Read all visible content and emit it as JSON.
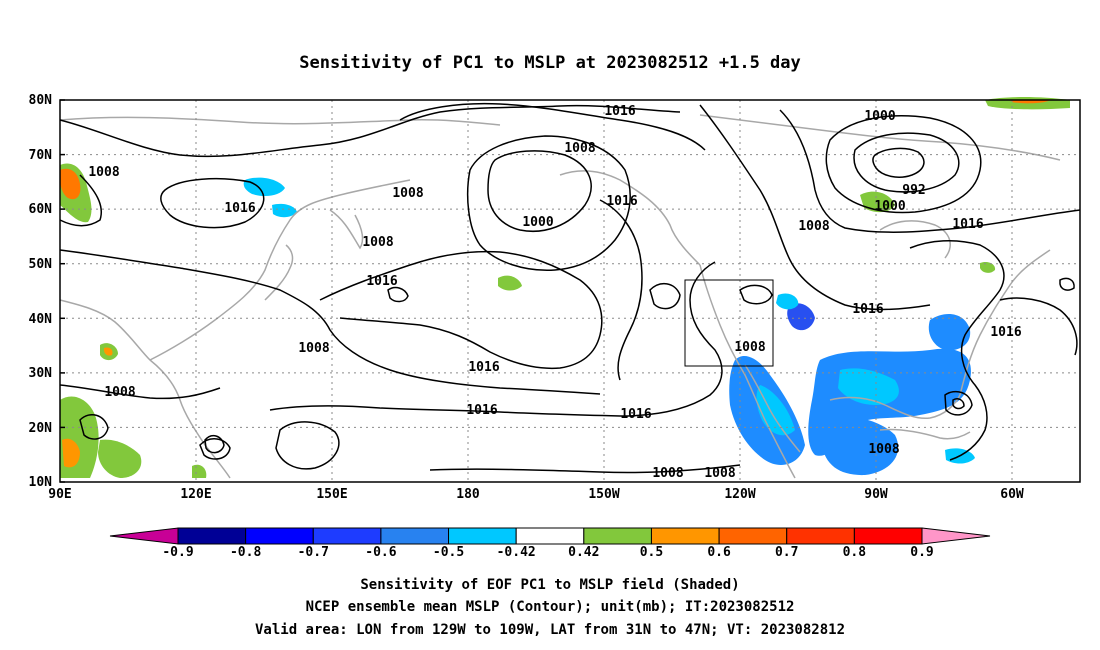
{
  "title": "Sensitivity of PC1 to MSLP at 2023082512 +1.5 day",
  "lat_ticks": [
    "80N",
    "70N",
    "60N",
    "50N",
    "40N",
    "30N",
    "20N",
    "10N"
  ],
  "lon_ticks": [
    "90E",
    "120E",
    "150E",
    "180",
    "150W",
    "120W",
    "90W",
    "60W"
  ],
  "contour_labels": [
    {
      "id": "c1",
      "text": "1008"
    },
    {
      "id": "c2",
      "text": "1016"
    },
    {
      "id": "c3",
      "text": "1008"
    },
    {
      "id": "c4",
      "text": "1008"
    },
    {
      "id": "c5",
      "text": "1016"
    },
    {
      "id": "c6",
      "text": "1008"
    },
    {
      "id": "c7",
      "text": "1000"
    },
    {
      "id": "c8",
      "text": "1016"
    },
    {
      "id": "c9",
      "text": "1016"
    },
    {
      "id": "c10",
      "text": "1008"
    },
    {
      "id": "c11",
      "text": "1016"
    },
    {
      "id": "c12",
      "text": "1016"
    },
    {
      "id": "c13",
      "text": "1016"
    },
    {
      "id": "c14",
      "text": "1008"
    },
    {
      "id": "c15",
      "text": "1000"
    },
    {
      "id": "c16",
      "text": "992"
    },
    {
      "id": "c17",
      "text": "1000"
    },
    {
      "id": "c18",
      "text": "1008"
    },
    {
      "id": "c19",
      "text": "1016"
    },
    {
      "id": "c20",
      "text": "1016"
    },
    {
      "id": "c21",
      "text": "1016"
    },
    {
      "id": "c22",
      "text": "1008"
    },
    {
      "id": "c23",
      "text": "1008"
    },
    {
      "id": "c24",
      "text": "1008"
    },
    {
      "id": "c25",
      "text": "1008"
    }
  ],
  "colorbar": {
    "labels": [
      "-0.9",
      "-0.8",
      "-0.7",
      "-0.6",
      "-0.5",
      "-0.42",
      "0.42",
      "0.5",
      "0.6",
      "0.7",
      "0.8",
      "0.9"
    ],
    "colors": [
      "#000096",
      "#0000ff",
      "#1e3cff",
      "#2882f0",
      "#00c8ff",
      "#ffffff",
      "#82c83c",
      "#ff9600",
      "#ff6400",
      "#ff3200",
      "#ff0000"
    ],
    "low_color": "#c80096",
    "high_color": "#ff96c8"
  },
  "footer": {
    "line1": "Sensitivity of EOF PC1 to MSLP field (Shaded)",
    "line2": "NCEP ensemble mean MSLP (Contour); unit(mb); IT:2023082512",
    "line3": "Valid area: LON from 129W to 109W, LAT from 31N to 47N; VT: 2023082812"
  }
}
